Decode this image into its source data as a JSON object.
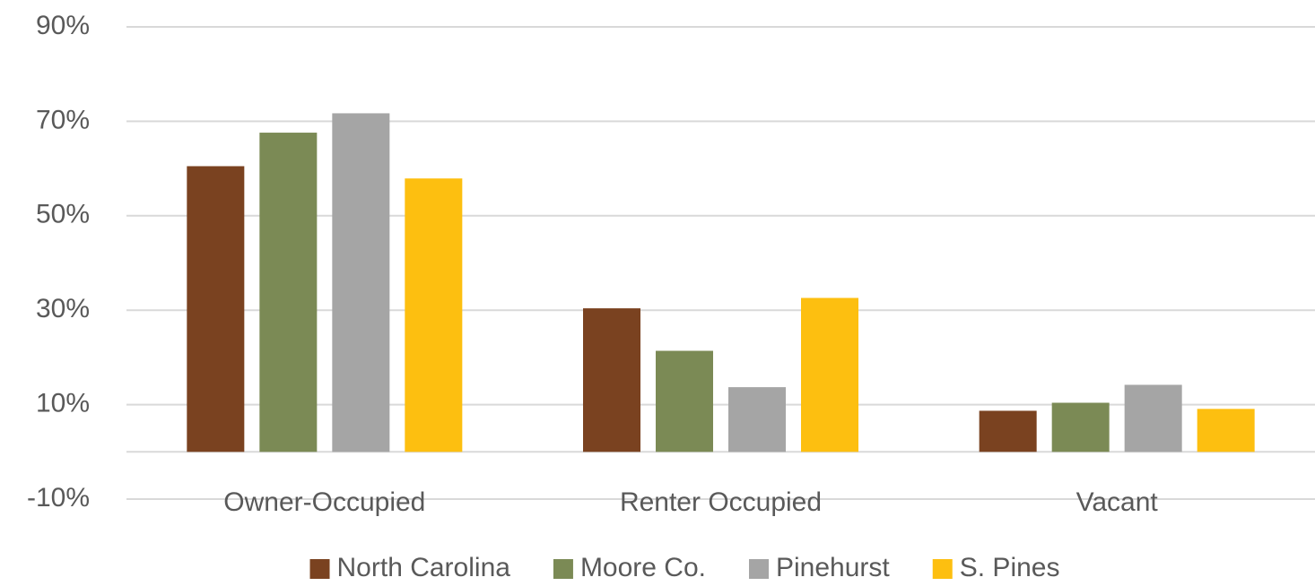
{
  "chart_data": {
    "type": "bar",
    "categories": [
      "Owner-Occupied",
      "Renter Occupied",
      "Vacant"
    ],
    "series": [
      {
        "name": "North Carolina",
        "color": "#7a4220",
        "values": [
          60.5,
          30.4,
          8.7
        ]
      },
      {
        "name": "Moore Co.",
        "color": "#7b8a55",
        "values": [
          67.6,
          21.4,
          10.4
        ]
      },
      {
        "name": "Pinehurst",
        "color": "#a5a5a5",
        "values": [
          71.7,
          13.7,
          14.2
        ]
      },
      {
        "name": "S. Pines",
        "color": "#fdbf10",
        "values": [
          57.9,
          32.6,
          9.1
        ]
      }
    ],
    "ylim": [
      -10,
      90
    ],
    "yticks": [
      {
        "value": -10,
        "label": "-10%"
      },
      {
        "value": 10,
        "label": "10%"
      },
      {
        "value": 30,
        "label": "30%"
      },
      {
        "value": 50,
        "label": "50%"
      },
      {
        "value": 70,
        "label": "70%"
      },
      {
        "value": 90,
        "label": "90%"
      }
    ],
    "grid": true,
    "legend": "bottom"
  }
}
